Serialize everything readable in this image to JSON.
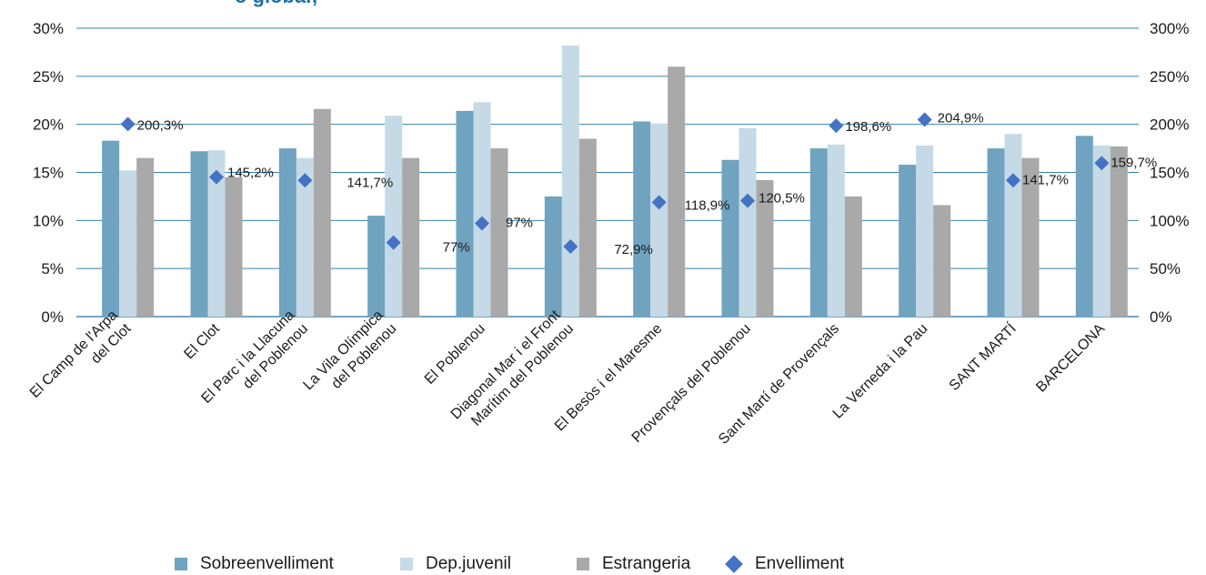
{
  "title_fragment": "o global;",
  "chart_data": {
    "type": "bar",
    "categories": [
      [
        "El Camp de l'Arpa",
        "del Clot"
      ],
      [
        "El Clot"
      ],
      [
        "El Parc i la Llacuna",
        "del Poblenou"
      ],
      [
        "La Vila Olímpica",
        "del Poblenou"
      ],
      [
        "El Poblenou"
      ],
      [
        "Diagonal Mar i el Front",
        "Marítim del Poblenou"
      ],
      [
        "El Besòs i el Maresme"
      ],
      [
        "Provençals del Poblenou"
      ],
      [
        "Sant Martí de Provençals"
      ],
      [
        "La Verneda i la Pau"
      ],
      [
        "SANT MARTÍ"
      ],
      [
        "BARCELONA"
      ]
    ],
    "series": [
      {
        "name": "Sobreenvelliment",
        "type": "bar",
        "axis": "left",
        "color": "#6fa3bf",
        "values": [
          18.3,
          17.2,
          17.5,
          10.5,
          21.4,
          12.5,
          20.3,
          16.3,
          17.5,
          15.8,
          17.5,
          18.8
        ]
      },
      {
        "name": "Dep.juvenil",
        "type": "bar",
        "axis": "left",
        "color": "#c5dae6",
        "values": [
          15.2,
          17.3,
          16.5,
          20.9,
          22.3,
          28.2,
          20.1,
          19.6,
          17.9,
          17.8,
          19.0,
          17.8
        ]
      },
      {
        "name": "Estrangeria",
        "type": "bar",
        "axis": "left",
        "color": "#a9a9a9",
        "values": [
          16.5,
          14.5,
          21.6,
          16.5,
          17.5,
          18.5,
          26.0,
          14.2,
          12.5,
          11.6,
          16.5,
          17.7
        ]
      },
      {
        "name": "Envelliment",
        "type": "scatter",
        "axis": "right",
        "color": "#4472c4",
        "values": [
          200.3,
          145.2,
          141.7,
          77,
          97,
          72.9,
          118.9,
          120.5,
          198.6,
          204.9,
          141.7,
          159.7
        ],
        "labels": [
          "200,3%",
          "145,2%",
          "141,7%",
          "77%",
          "97%",
          "72,9%",
          "118,9%",
          "120,5%",
          "198,6%",
          "204,9%",
          "141,7%",
          "159,7%"
        ]
      }
    ],
    "y_left": {
      "min": 0,
      "max": 30,
      "ticks": [
        "0%",
        "5%",
        "10%",
        "15%",
        "20%",
        "25%",
        "30%"
      ]
    },
    "y_right": {
      "min": 0,
      "max": 300,
      "ticks": [
        "0%",
        "50%",
        "100%",
        "150%",
        "200%",
        "250%",
        "300%"
      ]
    },
    "grid": true,
    "legend_position": "bottom"
  },
  "legend": [
    {
      "label": "Sobreenvelliment",
      "color": "#6fa3bf",
      "shape": "square"
    },
    {
      "label": "Dep.juvenil",
      "color": "#c5dae6",
      "shape": "square"
    },
    {
      "label": "Estrangeria",
      "color": "#a9a9a9",
      "shape": "square"
    },
    {
      "label": "Envelliment",
      "color": "#4472c4",
      "shape": "diamond"
    }
  ]
}
